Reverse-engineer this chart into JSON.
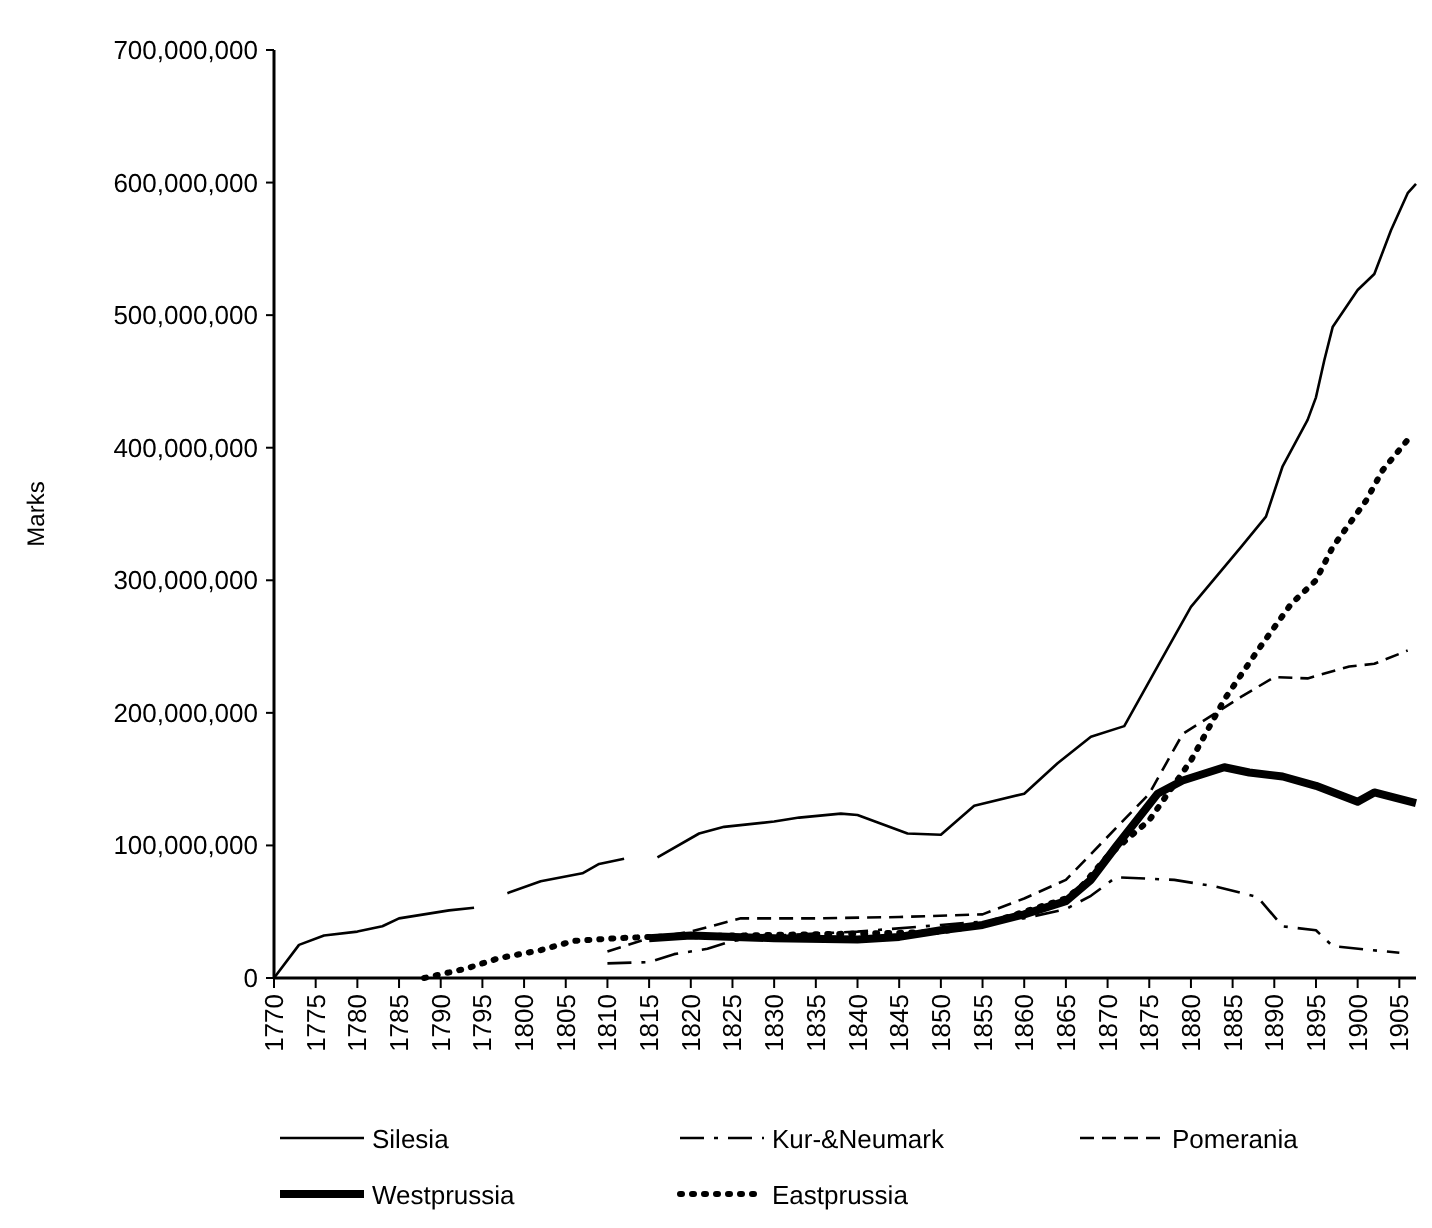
{
  "chart_data": {
    "type": "line",
    "ylabel": "Marks",
    "xlim": [
      1770,
      1907
    ],
    "xticks": [
      1770,
      1775,
      1780,
      1785,
      1790,
      1795,
      1800,
      1805,
      1810,
      1815,
      1820,
      1825,
      1830,
      1835,
      1840,
      1845,
      1850,
      1855,
      1860,
      1865,
      1870,
      1875,
      1880,
      1885,
      1890,
      1895,
      1900,
      1905
    ],
    "ylim": [
      0,
      700000000
    ],
    "yticks": [
      {
        "value": 0,
        "label": "0"
      },
      {
        "value": 100000000,
        "label": "100,000,000"
      },
      {
        "value": 200000000,
        "label": "200,000,000"
      },
      {
        "value": 300000000,
        "label": "300,000,000"
      },
      {
        "value": 400000000,
        "label": "400,000,000"
      },
      {
        "value": 500000000,
        "label": "500,000,000"
      },
      {
        "value": 600000000,
        "label": "600,000,000"
      },
      {
        "value": 700000000,
        "label": "700,000,000"
      }
    ],
    "grid": false,
    "legend": "bottom",
    "series": [
      {
        "name": "Silesia",
        "color": "#000000",
        "line_style": "solid",
        "x": [
          1770,
          1773,
          1776,
          1780,
          1783,
          1785,
          1788,
          1791,
          1794,
          1796,
          1798,
          1802,
          1807,
          1809,
          1812,
          1814,
          1816,
          1821,
          1824,
          1830,
          1833,
          1838,
          1840,
          1846,
          1850,
          1854,
          1860,
          1864,
          1868,
          1872,
          1876,
          1880,
          1886,
          1889,
          1891,
          1894,
          1895,
          1896,
          1897,
          1900,
          1902,
          1904,
          1906,
          1907
        ],
        "values": [
          0,
          25000000,
          32000000,
          35000000,
          39000000,
          45000000,
          48000000,
          51000000,
          53000000,
          null,
          64000000,
          73000000,
          79000000,
          86000000,
          90000000,
          null,
          91000000,
          109000000,
          114000000,
          118000000,
          121000000,
          124000000,
          123000000,
          109000000,
          108000000,
          130000000,
          139000000,
          162000000,
          182000000,
          190000000,
          235000000,
          280000000,
          325000000,
          348000000,
          386000000,
          421000000,
          438000000,
          466000000,
          491000000,
          519000000,
          531000000,
          564000000,
          592000000,
          599000000
        ]
      },
      {
        "name": "Kur-&Neumark",
        "color": "#000000",
        "line_style": "dashdot",
        "x": [
          1810,
          1815,
          1818,
          1822,
          1825,
          1830,
          1840,
          1850,
          1860,
          1865,
          1868,
          1871,
          1878,
          1883,
          1888,
          1891,
          1895,
          1897,
          1905
        ],
        "values": [
          11000000,
          12000000,
          18000000,
          22000000,
          28000000,
          32000000,
          35000000,
          40000000,
          45000000,
          52000000,
          62000000,
          76000000,
          74000000,
          69000000,
          61000000,
          39000000,
          36000000,
          24000000,
          19000000
        ]
      },
      {
        "name": "Pomerania",
        "color": "#000000",
        "line_style": "dashed",
        "x": [
          1810,
          1815,
          1820,
          1826,
          1835,
          1845,
          1855,
          1860,
          1865,
          1875,
          1879,
          1886,
          1890,
          1894,
          1899,
          1902,
          1906
        ],
        "values": [
          20000000,
          30000000,
          35000000,
          45000000,
          45000000,
          46000000,
          48000000,
          60000000,
          74000000,
          139000000,
          184000000,
          212000000,
          227000000,
          226000000,
          235000000,
          237000000,
          247000000
        ]
      },
      {
        "name": "Westprussia",
        "color": "#000000",
        "line_style": "solid",
        "x": [
          1815,
          1820,
          1830,
          1840,
          1845,
          1850,
          1855,
          1860,
          1865,
          1868,
          1871,
          1876,
          1879,
          1884,
          1887,
          1891,
          1895,
          1900,
          1902,
          1907
        ],
        "values": [
          30000000,
          32000000,
          30000000,
          29000000,
          31000000,
          36000000,
          40000000,
          48000000,
          58000000,
          74000000,
          99000000,
          139000000,
          149000000,
          159000000,
          155000000,
          152000000,
          145000000,
          133000000,
          140000000,
          132000000
        ]
      },
      {
        "name": "Eastprussia",
        "color": "#000000",
        "line_style": "dotted",
        "x": [
          1788,
          1793,
          1797,
          1802,
          1806,
          1811,
          1815,
          1825,
          1835,
          1845,
          1850,
          1855,
          1860,
          1865,
          1867,
          1870,
          1875,
          1880,
          1884,
          1888,
          1892,
          1895,
          1897,
          1901,
          1903,
          1906
        ],
        "values": [
          0,
          7000000,
          15000000,
          21000000,
          28000000,
          30000000,
          31000000,
          32000000,
          33000000,
          34000000,
          35000000,
          40000000,
          50000000,
          60000000,
          70000000,
          92000000,
          119000000,
          164000000,
          210000000,
          247000000,
          282000000,
          300000000,
          325000000,
          360000000,
          383000000,
          406000000
        ]
      }
    ]
  }
}
